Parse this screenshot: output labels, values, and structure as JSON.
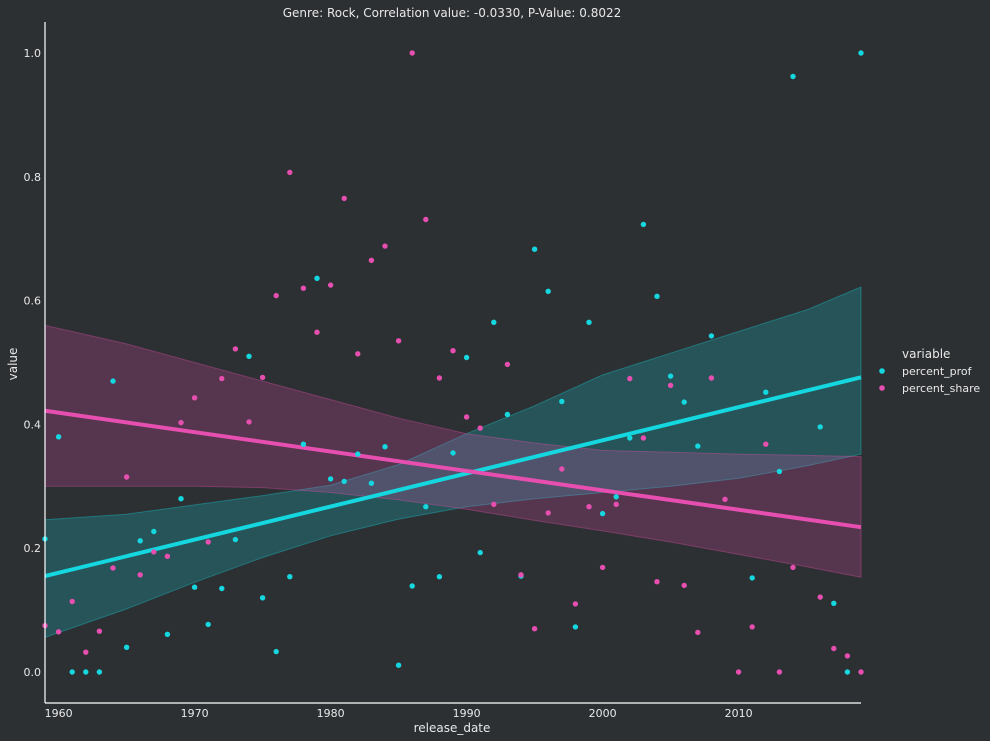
{
  "chart_data": {
    "type": "scatter",
    "title": "Genre: Rock, Correlation value: -0.0330, P-Value: 0.8022",
    "xlabel": "release_date",
    "ylabel": "value",
    "xlim": [
      1959,
      2019
    ],
    "ylim": [
      -0.05,
      1.05
    ],
    "x_ticks": [
      1960,
      1970,
      1980,
      1990,
      2000,
      2010
    ],
    "y_ticks": [
      0.0,
      0.2,
      0.4,
      0.6,
      0.8,
      1.0
    ],
    "grid": false,
    "legend": {
      "title": "variable",
      "position": "right",
      "entries": [
        "percent_prof",
        "percent_share"
      ]
    },
    "colors": {
      "background": "#2d3033",
      "percent_prof": "#14d7e0",
      "percent_share": "#e64fb0",
      "text": "#e8e8e8",
      "axis": "#ffffff"
    },
    "series": [
      {
        "name": "percent_prof",
        "points": [
          [
            1959,
            0.215
          ],
          [
            1960,
            0.38
          ],
          [
            1961,
            0.0
          ],
          [
            1962,
            0.0
          ],
          [
            1963,
            0.0
          ],
          [
            1964,
            0.47
          ],
          [
            1965,
            0.04
          ],
          [
            1966,
            0.212
          ],
          [
            1967,
            0.227
          ],
          [
            1968,
            0.061
          ],
          [
            1969,
            0.28
          ],
          [
            1970,
            0.137
          ],
          [
            1971,
            0.077
          ],
          [
            1972,
            0.135
          ],
          [
            1973,
            0.214
          ],
          [
            1974,
            0.51
          ],
          [
            1975,
            0.12
          ],
          [
            1976,
            0.033
          ],
          [
            1977,
            0.154
          ],
          [
            1978,
            0.368
          ],
          [
            1979,
            0.636
          ],
          [
            1980,
            0.312
          ],
          [
            1981,
            0.308
          ],
          [
            1982,
            0.352
          ],
          [
            1983,
            0.305
          ],
          [
            1984,
            0.364
          ],
          [
            1985,
            0.011
          ],
          [
            1986,
            0.139
          ],
          [
            1987,
            0.267
          ],
          [
            1988,
            0.154
          ],
          [
            1989,
            0.354
          ],
          [
            1990,
            0.508
          ],
          [
            1991,
            0.193
          ],
          [
            1992,
            0.565
          ],
          [
            1993,
            0.416
          ],
          [
            1994,
            0.155
          ],
          [
            1995,
            0.683
          ],
          [
            1996,
            0.615
          ],
          [
            1997,
            0.437
          ],
          [
            1998,
            0.073
          ],
          [
            1999,
            0.565
          ],
          [
            2000,
            0.256
          ],
          [
            2001,
            0.283
          ],
          [
            2002,
            0.378
          ],
          [
            2003,
            0.723
          ],
          [
            2004,
            0.607
          ],
          [
            2005,
            0.478
          ],
          [
            2006,
            0.436
          ],
          [
            2007,
            0.365
          ],
          [
            2008,
            0.543
          ],
          [
            2011,
            0.152
          ],
          [
            2012,
            0.452
          ],
          [
            2013,
            0.324
          ],
          [
            2014,
            0.962
          ],
          [
            2016,
            0.396
          ],
          [
            2017,
            0.111
          ],
          [
            2018,
            0.0
          ],
          [
            2019,
            1.0
          ]
        ],
        "regression": {
          "start": [
            1959,
            0.155
          ],
          "end": [
            2019,
            0.476
          ]
        },
        "ci": {
          "x": [
            1959,
            1965,
            1970,
            1975,
            1980,
            1985,
            1990,
            1995,
            2000,
            2005,
            2010,
            2015,
            2019
          ],
          "lower": [
            0.056,
            0.102,
            0.145,
            0.185,
            0.22,
            0.247,
            0.267,
            0.28,
            0.29,
            0.3,
            0.313,
            0.333,
            0.352
          ],
          "upper": [
            0.246,
            0.255,
            0.27,
            0.285,
            0.302,
            0.335,
            0.385,
            0.43,
            0.48,
            0.515,
            0.55,
            0.585,
            0.622
          ]
        }
      },
      {
        "name": "percent_share",
        "points": [
          [
            1959,
            0.075
          ],
          [
            1960,
            0.065
          ],
          [
            1961,
            0.114
          ],
          [
            1962,
            0.032
          ],
          [
            1963,
            0.066
          ],
          [
            1964,
            0.168
          ],
          [
            1965,
            0.315
          ],
          [
            1966,
            0.157
          ],
          [
            1967,
            0.194
          ],
          [
            1968,
            0.187
          ],
          [
            1969,
            0.403
          ],
          [
            1970,
            0.443
          ],
          [
            1971,
            0.21
          ],
          [
            1972,
            0.474
          ],
          [
            1973,
            0.522
          ],
          [
            1974,
            0.404
          ],
          [
            1975,
            0.476
          ],
          [
            1976,
            0.608
          ],
          [
            1977,
            0.807
          ],
          [
            1978,
            0.62
          ],
          [
            1979,
            0.549
          ],
          [
            1980,
            0.625
          ],
          [
            1981,
            0.765
          ],
          [
            1982,
            0.514
          ],
          [
            1983,
            0.665
          ],
          [
            1984,
            0.688
          ],
          [
            1985,
            0.535
          ],
          [
            1986,
            1.0
          ],
          [
            1987,
            0.731
          ],
          [
            1988,
            0.475
          ],
          [
            1989,
            0.519
          ],
          [
            1990,
            0.412
          ],
          [
            1991,
            0.394
          ],
          [
            1992,
            0.271
          ],
          [
            1993,
            0.497
          ],
          [
            1994,
            0.157
          ],
          [
            1995,
            0.07
          ],
          [
            1996,
            0.257
          ],
          [
            1997,
            0.328
          ],
          [
            1998,
            0.11
          ],
          [
            1999,
            0.267
          ],
          [
            2000,
            0.169
          ],
          [
            2001,
            0.271
          ],
          [
            2002,
            0.474
          ],
          [
            2003,
            0.378
          ],
          [
            2004,
            0.146
          ],
          [
            2005,
            0.463
          ],
          [
            2006,
            0.14
          ],
          [
            2007,
            0.064
          ],
          [
            2008,
            0.475
          ],
          [
            2009,
            0.279
          ],
          [
            2010,
            0.0
          ],
          [
            2011,
            0.073
          ],
          [
            2012,
            0.368
          ],
          [
            2013,
            0.0
          ],
          [
            2014,
            0.169
          ],
          [
            2016,
            0.121
          ],
          [
            2017,
            0.038
          ],
          [
            2018,
            0.026
          ],
          [
            2019,
            0.0
          ]
        ],
        "regression": {
          "start": [
            1959,
            0.422
          ],
          "end": [
            2019,
            0.234
          ]
        },
        "ci": {
          "x": [
            1959,
            1965,
            1970,
            1975,
            1980,
            1985,
            1990,
            1995,
            2000,
            2005,
            2010,
            2015,
            2019
          ],
          "lower": [
            0.3,
            0.3,
            0.3,
            0.298,
            0.29,
            0.278,
            0.263,
            0.245,
            0.228,
            0.21,
            0.19,
            0.17,
            0.153
          ],
          "upper": [
            0.56,
            0.53,
            0.5,
            0.47,
            0.44,
            0.41,
            0.385,
            0.37,
            0.358,
            0.355,
            0.352,
            0.35,
            0.348
          ]
        }
      }
    ]
  }
}
